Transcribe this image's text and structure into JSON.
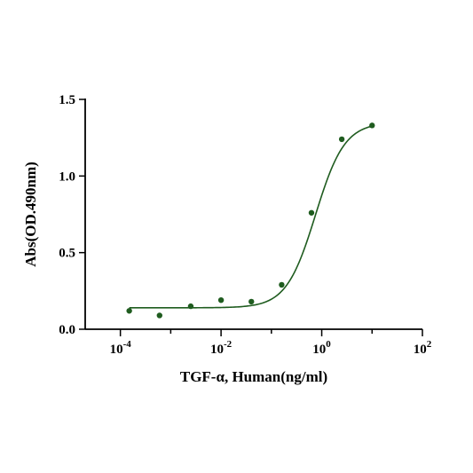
{
  "chart_data": {
    "type": "scatter",
    "xlabel": "TGF-α, Human(ng/ml)",
    "ylabel": "Abs(OD.490nm)",
    "x_scale": "log10",
    "xlim": [
      2e-05,
      100
    ],
    "ylim": [
      0,
      1.5
    ],
    "x_ticks": [
      {
        "value": 0.0001,
        "base": "10",
        "exp": "-4"
      },
      {
        "value": 0.01,
        "base": "10",
        "exp": "-2"
      },
      {
        "value": 1,
        "base": "10",
        "exp": "0"
      },
      {
        "value": 100,
        "base": "10",
        "exp": "2"
      }
    ],
    "y_ticks": [
      {
        "value": 0,
        "label": "0.0"
      },
      {
        "value": 0.5,
        "label": "0.5"
      },
      {
        "value": 1,
        "label": "1.0"
      },
      {
        "value": 1.5,
        "label": "1.5"
      }
    ],
    "series": [
      {
        "color": "#1f5c1f",
        "points": [
          {
            "x": 0.00015,
            "y": 0.12
          },
          {
            "x": 0.0006,
            "y": 0.09
          },
          {
            "x": 0.0025,
            "y": 0.15
          },
          {
            "x": 0.01,
            "y": 0.19
          },
          {
            "x": 0.04,
            "y": 0.18
          },
          {
            "x": 0.16,
            "y": 0.29
          },
          {
            "x": 0.625,
            "y": 0.76
          },
          {
            "x": 2.5,
            "y": 1.24
          },
          {
            "x": 10,
            "y": 1.33
          }
        ],
        "fit": {
          "model": "4PL",
          "bottom": 0.14,
          "top": 1.35,
          "ec50": 0.75,
          "hill": 1.5
        }
      }
    ],
    "grid": false,
    "legend": false
  }
}
